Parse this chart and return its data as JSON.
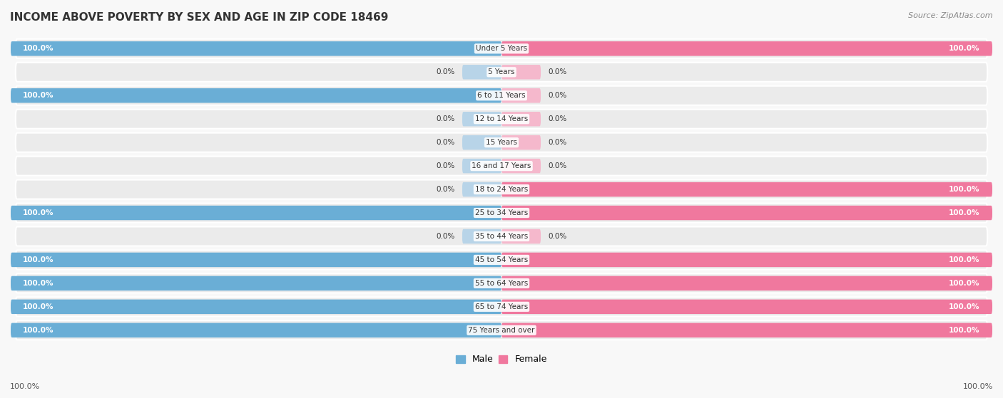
{
  "title": "INCOME ABOVE POVERTY BY SEX AND AGE IN ZIP CODE 18469",
  "source": "Source: ZipAtlas.com",
  "categories": [
    "Under 5 Years",
    "5 Years",
    "6 to 11 Years",
    "12 to 14 Years",
    "15 Years",
    "16 and 17 Years",
    "18 to 24 Years",
    "25 to 34 Years",
    "35 to 44 Years",
    "45 to 54 Years",
    "55 to 64 Years",
    "65 to 74 Years",
    "75 Years and over"
  ],
  "male_values": [
    100.0,
    0.0,
    100.0,
    0.0,
    0.0,
    0.0,
    0.0,
    100.0,
    0.0,
    100.0,
    100.0,
    100.0,
    100.0
  ],
  "female_values": [
    100.0,
    0.0,
    0.0,
    0.0,
    0.0,
    0.0,
    100.0,
    100.0,
    0.0,
    100.0,
    100.0,
    100.0,
    100.0
  ],
  "male_color": "#6aaed6",
  "female_color": "#f0789e",
  "male_light_color": "#b8d4e8",
  "female_light_color": "#f5b8cc",
  "row_bg_color": "#ebebeb",
  "bg_color": "#f8f8f8",
  "text_color_dark": "#333333",
  "text_color_light": "white",
  "legend_male": "Male",
  "legend_female": "Female"
}
